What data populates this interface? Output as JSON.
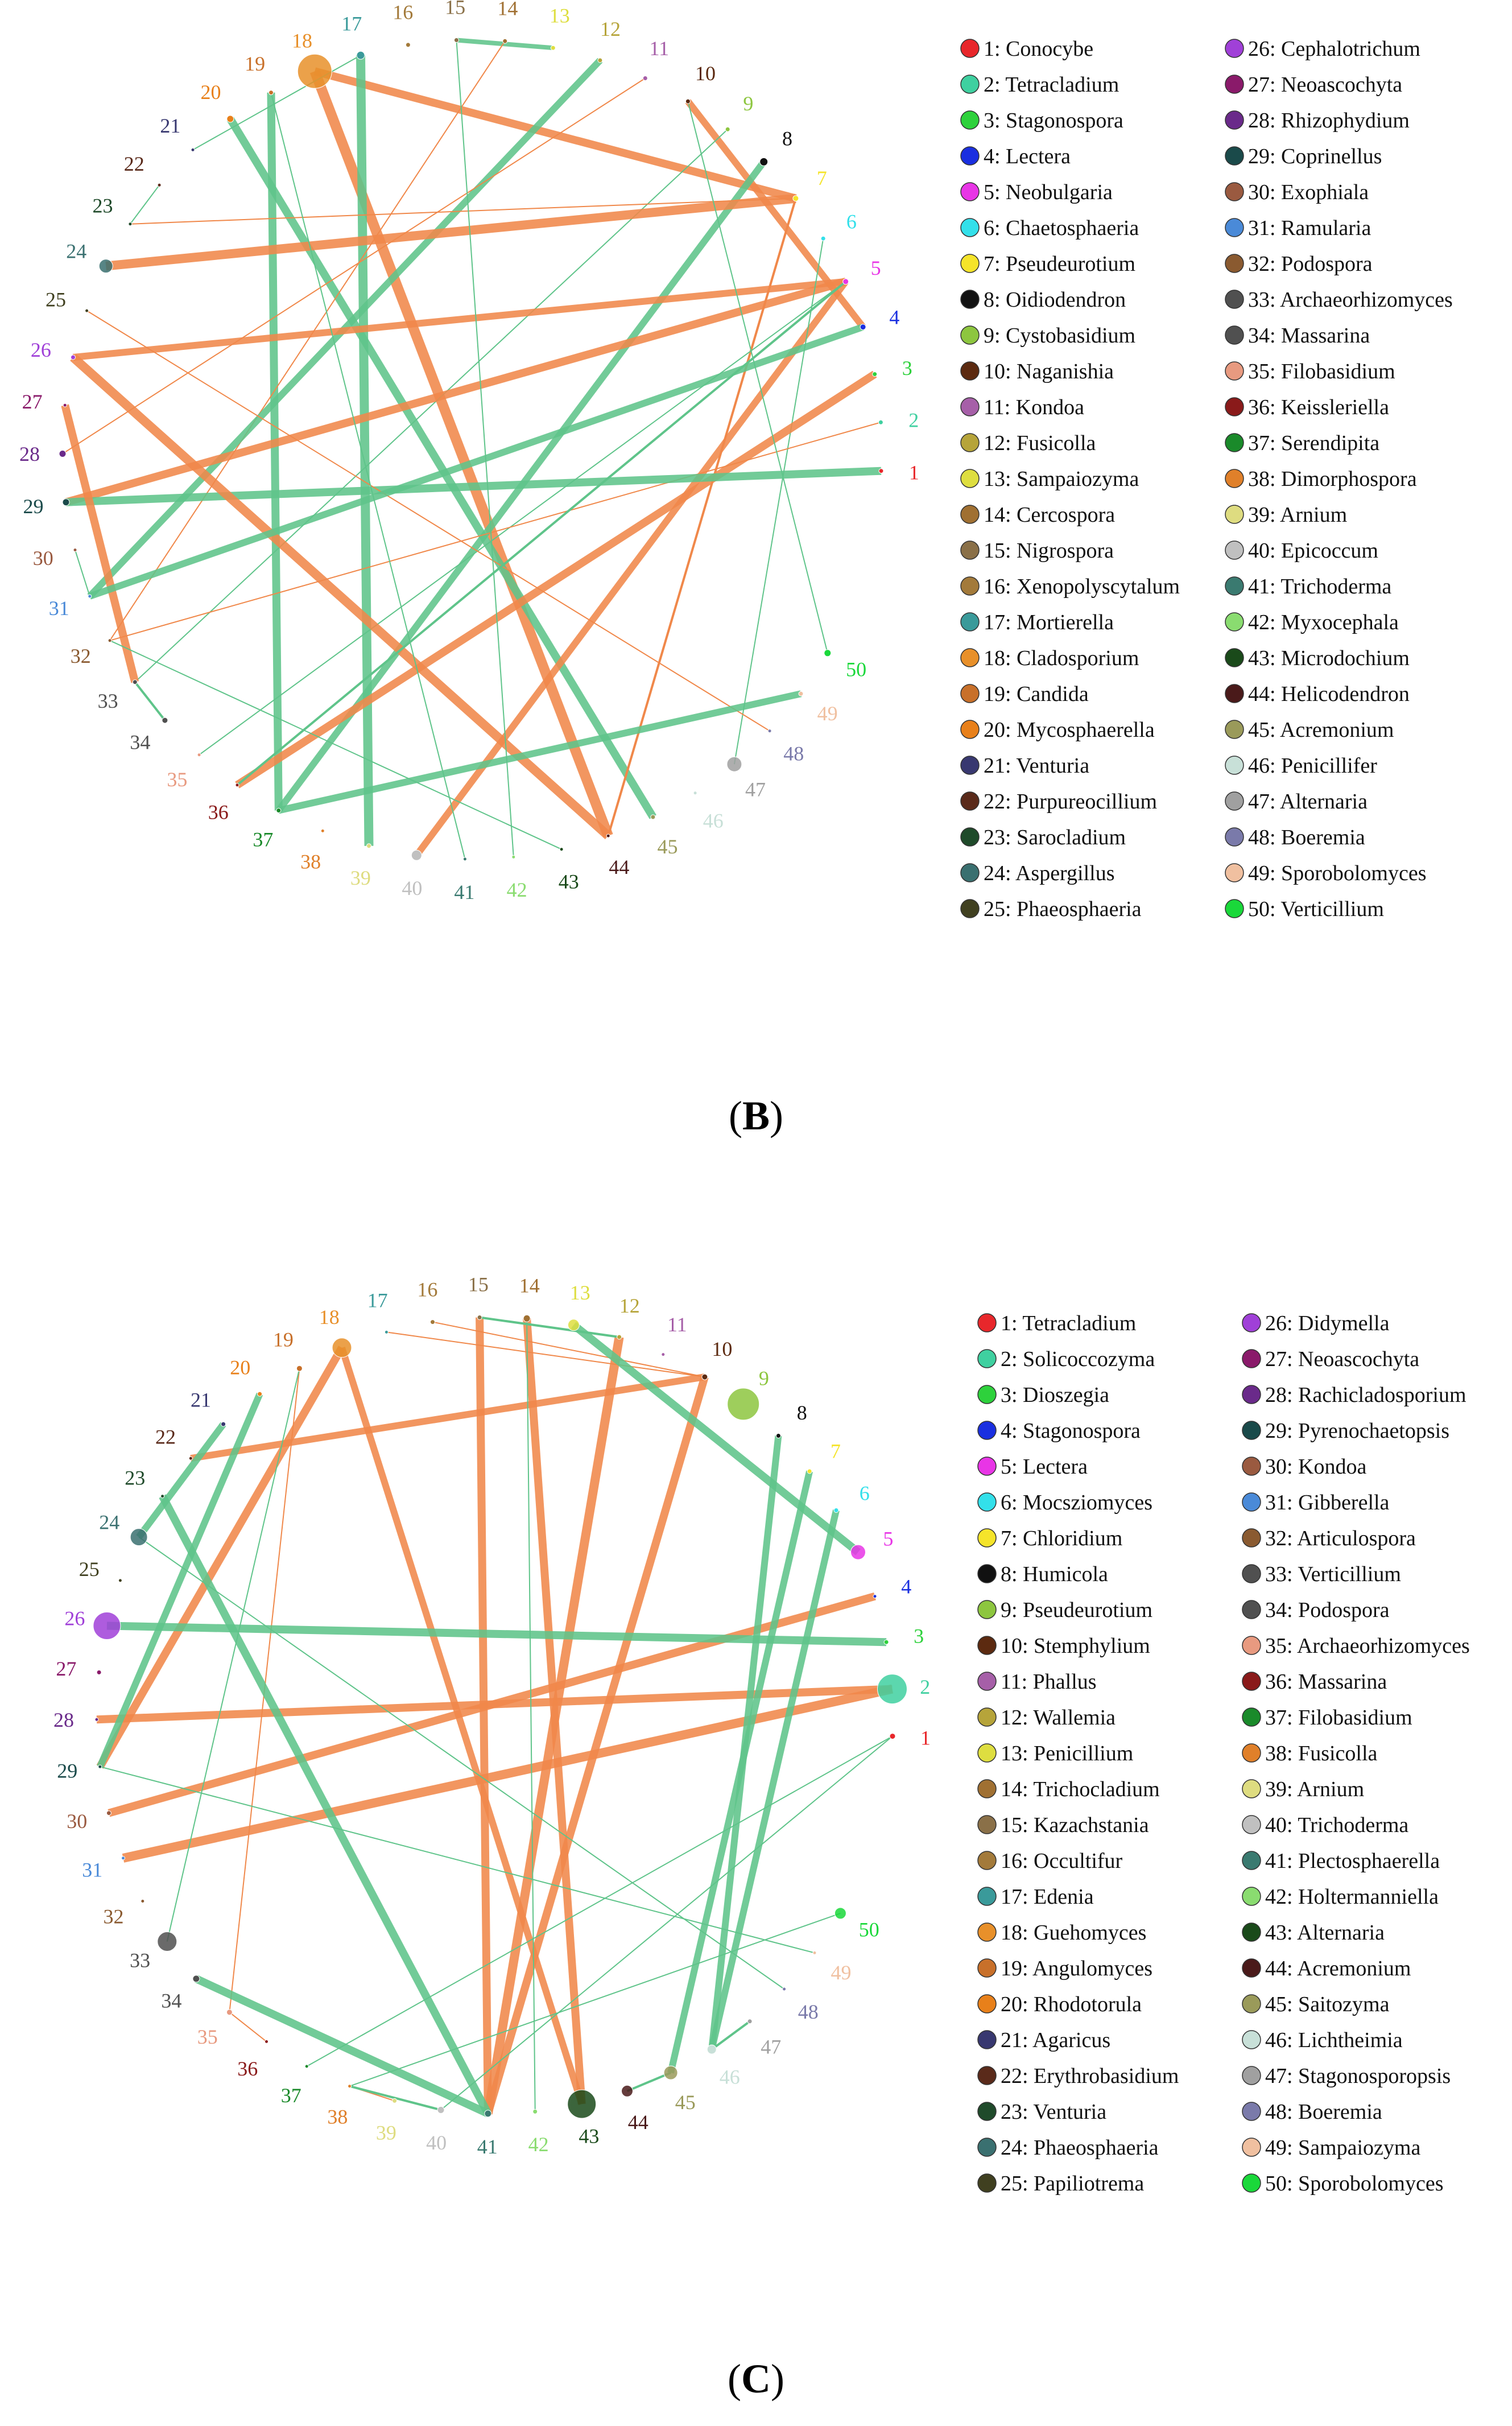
{
  "figure": {
    "panels": [
      {
        "id": "B",
        "caption_open": "(",
        "caption_letter": "B",
        "caption_close": ")",
        "colors": [
          "#e8272b",
          "#3fd0a0",
          "#2ed13c",
          "#1a2fe0",
          "#e835e6",
          "#33e0ea",
          "#f5e42a",
          "#111111",
          "#8dc63f",
          "#5c2a10",
          "#a65fa8",
          "#b6a43a",
          "#dede40",
          "#a07032",
          "#8a7048",
          "#a37a3a",
          "#3a9a9a",
          "#e8902a",
          "#c8702a",
          "#e8801a",
          "#383870",
          "#5a2a1a",
          "#1f4a2a",
          "#3a7070",
          "#404020",
          "#a040d8",
          "#8a1a6a",
          "#6a2a8a",
          "#1a4a4a",
          "#9a5a40",
          "#4a8ad8",
          "#8a5a30",
          "#505050",
          "#505050",
          "#e89a80",
          "#8a1a1a",
          "#1a8a2a",
          "#e0802a",
          "#dedc80",
          "#c0c0c0",
          "#3a7a70",
          "#8adc70",
          "#1a4a1a",
          "#4a1a1a",
          "#9a9a5a",
          "#c8e0d8",
          "#a0a0a0",
          "#7a7aaa",
          "#f0c0a0",
          "#1ad83a"
        ],
        "sizes": [
          4,
          4,
          4,
          5,
          5,
          4,
          5,
          7,
          4,
          4,
          4,
          4,
          4,
          4,
          4,
          4,
          7,
          30,
          4,
          6,
          3,
          3,
          3,
          12,
          3,
          4,
          3,
          6,
          6,
          3,
          3,
          3,
          4,
          5,
          3,
          3,
          4,
          3,
          4,
          9,
          3,
          3,
          3,
          3,
          4,
          3,
          13,
          3,
          4,
          6
        ],
        "edges": [
          {
            "a": 18,
            "b": 7,
            "w": 14,
            "c": "orange"
          },
          {
            "a": 18,
            "b": 44,
            "w": 18,
            "c": "orange"
          },
          {
            "a": 17,
            "b": 39,
            "w": 16,
            "c": "green"
          },
          {
            "a": 19,
            "b": 37,
            "w": 14,
            "c": "green"
          },
          {
            "a": 20,
            "b": 45,
            "w": 14,
            "c": "green"
          },
          {
            "a": 15,
            "b": 13,
            "w": 8,
            "c": "green"
          },
          {
            "a": 14,
            "b": 32,
            "w": 2,
            "c": "orange"
          },
          {
            "a": 12,
            "b": 31,
            "w": 12,
            "c": "green"
          },
          {
            "a": 11,
            "b": 28,
            "w": 2,
            "c": "orange"
          },
          {
            "a": 10,
            "b": 4,
            "w": 12,
            "c": "orange"
          },
          {
            "a": 9,
            "b": 33,
            "w": 2,
            "c": "green"
          },
          {
            "a": 8,
            "b": 37,
            "w": 12,
            "c": "green"
          },
          {
            "a": 7,
            "b": 24,
            "w": 16,
            "c": "orange"
          },
          {
            "a": 7,
            "b": 23,
            "w": 2,
            "c": "orange"
          },
          {
            "a": 7,
            "b": 44,
            "w": 4,
            "c": "orange"
          },
          {
            "a": 5,
            "b": 26,
            "w": 12,
            "c": "orange"
          },
          {
            "a": 5,
            "b": 29,
            "w": 14,
            "c": "orange"
          },
          {
            "a": 5,
            "b": 40,
            "w": 12,
            "c": "orange"
          },
          {
            "a": 5,
            "b": 35,
            "w": 2,
            "c": "green"
          },
          {
            "a": 6,
            "b": 47,
            "w": 2,
            "c": "green"
          },
          {
            "a": 3,
            "b": 36,
            "w": 14,
            "c": "orange"
          },
          {
            "a": 2,
            "b": 32,
            "w": 2,
            "c": "orange"
          },
          {
            "a": 1,
            "b": 29,
            "w": 14,
            "c": "green"
          },
          {
            "a": 26,
            "b": 44,
            "w": 16,
            "c": "orange"
          },
          {
            "a": 27,
            "b": 33,
            "w": 14,
            "c": "orange"
          },
          {
            "a": 25,
            "b": 48,
            "w": 2,
            "c": "orange"
          },
          {
            "a": 31,
            "b": 4,
            "w": 12,
            "c": "green"
          },
          {
            "a": 32,
            "b": 43,
            "w": 2,
            "c": "green"
          },
          {
            "a": 49,
            "b": 37,
            "w": 12,
            "c": "green"
          },
          {
            "a": 17,
            "b": 21,
            "w": 2,
            "c": "green"
          },
          {
            "a": 19,
            "b": 41,
            "w": 2,
            "c": "green"
          },
          {
            "a": 15,
            "b": 42,
            "w": 2,
            "c": "green"
          },
          {
            "a": 10,
            "b": 50,
            "w": 2,
            "c": "green"
          },
          {
            "a": 30,
            "b": 31,
            "w": 2,
            "c": "green"
          },
          {
            "a": 22,
            "b": 23,
            "w": 2,
            "c": "green"
          },
          {
            "a": 33,
            "b": 34,
            "w": 4,
            "c": "green"
          },
          {
            "a": 36,
            "b": 5,
            "w": 4,
            "c": "green"
          }
        ],
        "legend": [
          "1: Conocybe",
          "2: Tetracladium",
          "3: Stagonospora",
          "4: Lectera",
          "5: Neobulgaria",
          "6: Chaetosphaeria",
          "7: Pseudeurotium",
          "8: Oidiodendron",
          "9: Cystobasidium",
          "10: Naganishia",
          "11: Kondoa",
          "12: Fusicolla",
          "13: Sampaiozyma",
          "14: Cercospora",
          "15: Nigrospora",
          "16: Xenopolyscytalum",
          "17: Mortierella",
          "18: Cladosporium",
          "19: Candida",
          "20: Mycosphaerella",
          "21: Venturia",
          "22: Purpureocillium",
          "23: Sarocladium",
          "24: Aspergillus",
          "25: Phaeosphaeria",
          "26: Cephalotrichum",
          "27: Neoascochyta",
          "28: Rhizophydium",
          "29: Coprinellus",
          "30: Exophiala",
          "31: Ramularia",
          "32: Podospora",
          "33: Archaeorhizomyces",
          "34: Massarina",
          "35: Filobasidium",
          "36: Keissleriella",
          "37: Serendipita",
          "38: Dimorphospora",
          "39: Arnium",
          "40: Epicoccum",
          "41: Trichoderma",
          "42: Myxocephala",
          "43: Microdochium",
          "44: Helicodendron",
          "45: Acremonium",
          "46: Penicillifer",
          "47: Alternaria",
          "48: Boeremia",
          "49: Sporobolomyces",
          "50: Verticillium"
        ]
      },
      {
        "id": "C",
        "caption_open": "(",
        "caption_letter": "C",
        "caption_close": ")",
        "colors": [
          "#e8272b",
          "#3fd0a0",
          "#2ed13c",
          "#1a2fe0",
          "#e835e6",
          "#33e0ea",
          "#f5e42a",
          "#111111",
          "#8dc63f",
          "#5c2a10",
          "#a65fa8",
          "#b6a43a",
          "#dede40",
          "#a07032",
          "#8a7048",
          "#a37a3a",
          "#3a9a9a",
          "#e8902a",
          "#c8702a",
          "#e8801a",
          "#383870",
          "#5a2a1a",
          "#1f4a2a",
          "#3a7070",
          "#404020",
          "#a040d8",
          "#8a1a6a",
          "#6a2a8a",
          "#1a4a4a",
          "#9a5a40",
          "#4a8ad8",
          "#8a5a30",
          "#505050",
          "#505050",
          "#e89a80",
          "#8a1a1a",
          "#1a8a2a",
          "#e0802a",
          "#dedc80",
          "#c0c0c0",
          "#3a7a70",
          "#8adc70",
          "#1a4a1a",
          "#4a1a1a",
          "#9a9a5a",
          "#c8e0d8",
          "#a0a0a0",
          "#7a7aaa",
          "#f0c0a0",
          "#1ad83a"
        ],
        "sizes": [
          5,
          26,
          4,
          3,
          13,
          4,
          4,
          4,
          28,
          5,
          3,
          4,
          10,
          6,
          4,
          4,
          3,
          17,
          5,
          4,
          4,
          3,
          3,
          15,
          3,
          24,
          4,
          3,
          3,
          4,
          3,
          3,
          17,
          6,
          5,
          3,
          3,
          3,
          4,
          6,
          6,
          4,
          25,
          10,
          12,
          8,
          4,
          3,
          3,
          10
        ],
        "edges": [
          {
            "a": 10,
            "b": 22,
            "w": 12,
            "c": "orange"
          },
          {
            "a": 10,
            "b": 41,
            "w": 14,
            "c": "orange"
          },
          {
            "a": 14,
            "b": 43,
            "w": 14,
            "c": "orange"
          },
          {
            "a": 15,
            "b": 41,
            "w": 14,
            "c": "orange"
          },
          {
            "a": 18,
            "b": 29,
            "w": 14,
            "c": "orange"
          },
          {
            "a": 18,
            "b": 43,
            "w": 12,
            "c": "orange"
          },
          {
            "a": 16,
            "b": 10,
            "w": 2,
            "c": "orange"
          },
          {
            "a": 12,
            "b": 41,
            "w": 16,
            "c": "orange"
          },
          {
            "a": 4,
            "b": 30,
            "w": 14,
            "c": "orange"
          },
          {
            "a": 2,
            "b": 28,
            "w": 14,
            "c": "orange"
          },
          {
            "a": 2,
            "b": 31,
            "w": 16,
            "c": "orange"
          },
          {
            "a": 19,
            "b": 35,
            "w": 2,
            "c": "orange"
          },
          {
            "a": 17,
            "b": 10,
            "w": 2,
            "c": "orange"
          },
          {
            "a": 35,
            "b": 36,
            "w": 2,
            "c": "orange"
          },
          {
            "a": 38,
            "b": 39,
            "w": 2,
            "c": "orange"
          },
          {
            "a": 3,
            "b": 26,
            "w": 14,
            "c": "green"
          },
          {
            "a": 13,
            "b": 5,
            "w": 14,
            "c": "green"
          },
          {
            "a": 7,
            "b": 45,
            "w": 12,
            "c": "green"
          },
          {
            "a": 6,
            "b": 46,
            "w": 12,
            "c": "green"
          },
          {
            "a": 8,
            "b": 46,
            "w": 12,
            "c": "green"
          },
          {
            "a": 20,
            "b": 29,
            "w": 12,
            "c": "green"
          },
          {
            "a": 21,
            "b": 24,
            "w": 12,
            "c": "green"
          },
          {
            "a": 23,
            "b": 41,
            "w": 14,
            "c": "green"
          },
          {
            "a": 34,
            "b": 41,
            "w": 14,
            "c": "green"
          },
          {
            "a": 14,
            "b": 42,
            "w": 2,
            "c": "green"
          },
          {
            "a": 19,
            "b": 33,
            "w": 2,
            "c": "green"
          },
          {
            "a": 24,
            "b": 48,
            "w": 2,
            "c": "green"
          },
          {
            "a": 29,
            "b": 49,
            "w": 2,
            "c": "green"
          },
          {
            "a": 37,
            "b": 1,
            "w": 2,
            "c": "green"
          },
          {
            "a": 38,
            "b": 50,
            "w": 2,
            "c": "green"
          },
          {
            "a": 40,
            "b": 1,
            "w": 2,
            "c": "green"
          },
          {
            "a": 47,
            "b": 46,
            "w": 4,
            "c": "green"
          },
          {
            "a": 44,
            "b": 45,
            "w": 4,
            "c": "green"
          },
          {
            "a": 15,
            "b": 12,
            "w": 4,
            "c": "green"
          },
          {
            "a": 38,
            "b": 40,
            "w": 4,
            "c": "green"
          }
        ],
        "legend": [
          "1: Tetracladium",
          "2: Solicoccozyma",
          "3: Dioszegia",
          "4: Stagonospora",
          "5: Lectera",
          "6: Mocsziomyces",
          "7: Chloridium",
          "8: Humicola",
          "9: Pseudeurotium",
          "10: Stemphylium",
          "11: Phallus",
          "12: Wallemia",
          "13: Penicillium",
          "14: Trichocladium",
          "15: Kazachstania",
          "16: Occultifur",
          "17: Edenia",
          "18: Guehomyces",
          "19: Angulomyces",
          "20: Rhodotorula",
          "21: Agaricus",
          "22: Erythrobasidium",
          "23: Venturia",
          "24: Phaeosphaeria",
          "25: Papiliotrema",
          "26: Didymella",
          "27: Neoascochyta",
          "28: Rachicladosporium",
          "29: Pyrenochaetopsis",
          "30: Kondoa",
          "31: Gibberella",
          "32: Articulospora",
          "33: Verticillium",
          "34: Podospora",
          "35: Archaeorhizomyces",
          "36: Massarina",
          "37: Filobasidium",
          "38: Fusicolla",
          "39: Arnium",
          "40: Trichoderma",
          "41: Plectosphaerella",
          "42: Holtermanniella",
          "43: Alternaria",
          "44: Acremonium",
          "45: Saitozyma",
          "46: Lichtheimia",
          "47: Stagonosporopsis",
          "48: Boeremia",
          "49: Sampaiozyma",
          "50: Sporobolomyces"
        ]
      }
    ],
    "edge_colors": {
      "orange": "#f0884a",
      "green": "#5fc48a"
    }
  }
}
